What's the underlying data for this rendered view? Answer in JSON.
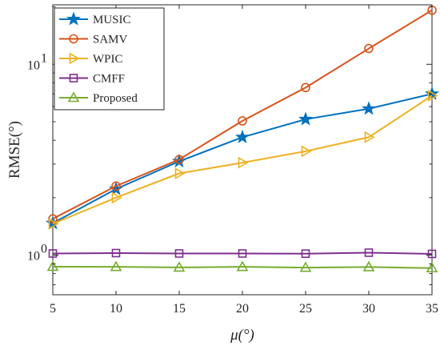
{
  "chart_data": {
    "type": "line",
    "xlabel": "μ(°)",
    "ylabel": "RMSE(°)",
    "y_scale": "log",
    "x": [
      5,
      10,
      15,
      20,
      25,
      30,
      35
    ],
    "xlim": [
      5,
      35
    ],
    "ylim": [
      0.62,
      20.5
    ],
    "x_ticks": [
      "5",
      "10",
      "15",
      "20",
      "25",
      "30",
      "35"
    ],
    "y_ticks": [
      {
        "value": 1,
        "base": "10",
        "exp": "0"
      },
      {
        "value": 10,
        "base": "10",
        "exp": "1"
      }
    ],
    "grid": false,
    "legend_position": "top-left",
    "series": [
      {
        "name": "MUSIC",
        "marker": "star",
        "color": "#0072BD",
        "values": [
          1.47,
          2.22,
          3.1,
          4.15,
          5.15,
          5.85,
          7.0
        ]
      },
      {
        "name": "SAMV",
        "marker": "circle",
        "color": "#D95319",
        "values": [
          1.55,
          2.3,
          3.17,
          5.05,
          7.55,
          12.1,
          19.2
        ]
      },
      {
        "name": "WPIC",
        "marker": "triangle-right",
        "color": "#EDB120",
        "values": [
          1.46,
          2.0,
          2.68,
          3.05,
          3.5,
          4.15,
          6.85
        ]
      },
      {
        "name": "CMFF",
        "marker": "square",
        "color": "#7E2F8E",
        "values": [
          1.02,
          1.025,
          1.02,
          1.02,
          1.018,
          1.03,
          1.015
        ]
      },
      {
        "name": "Proposed",
        "marker": "triangle-up",
        "color": "#77AC30",
        "values": [
          0.87,
          0.868,
          0.862,
          0.868,
          0.86,
          0.866,
          0.855
        ]
      }
    ]
  }
}
